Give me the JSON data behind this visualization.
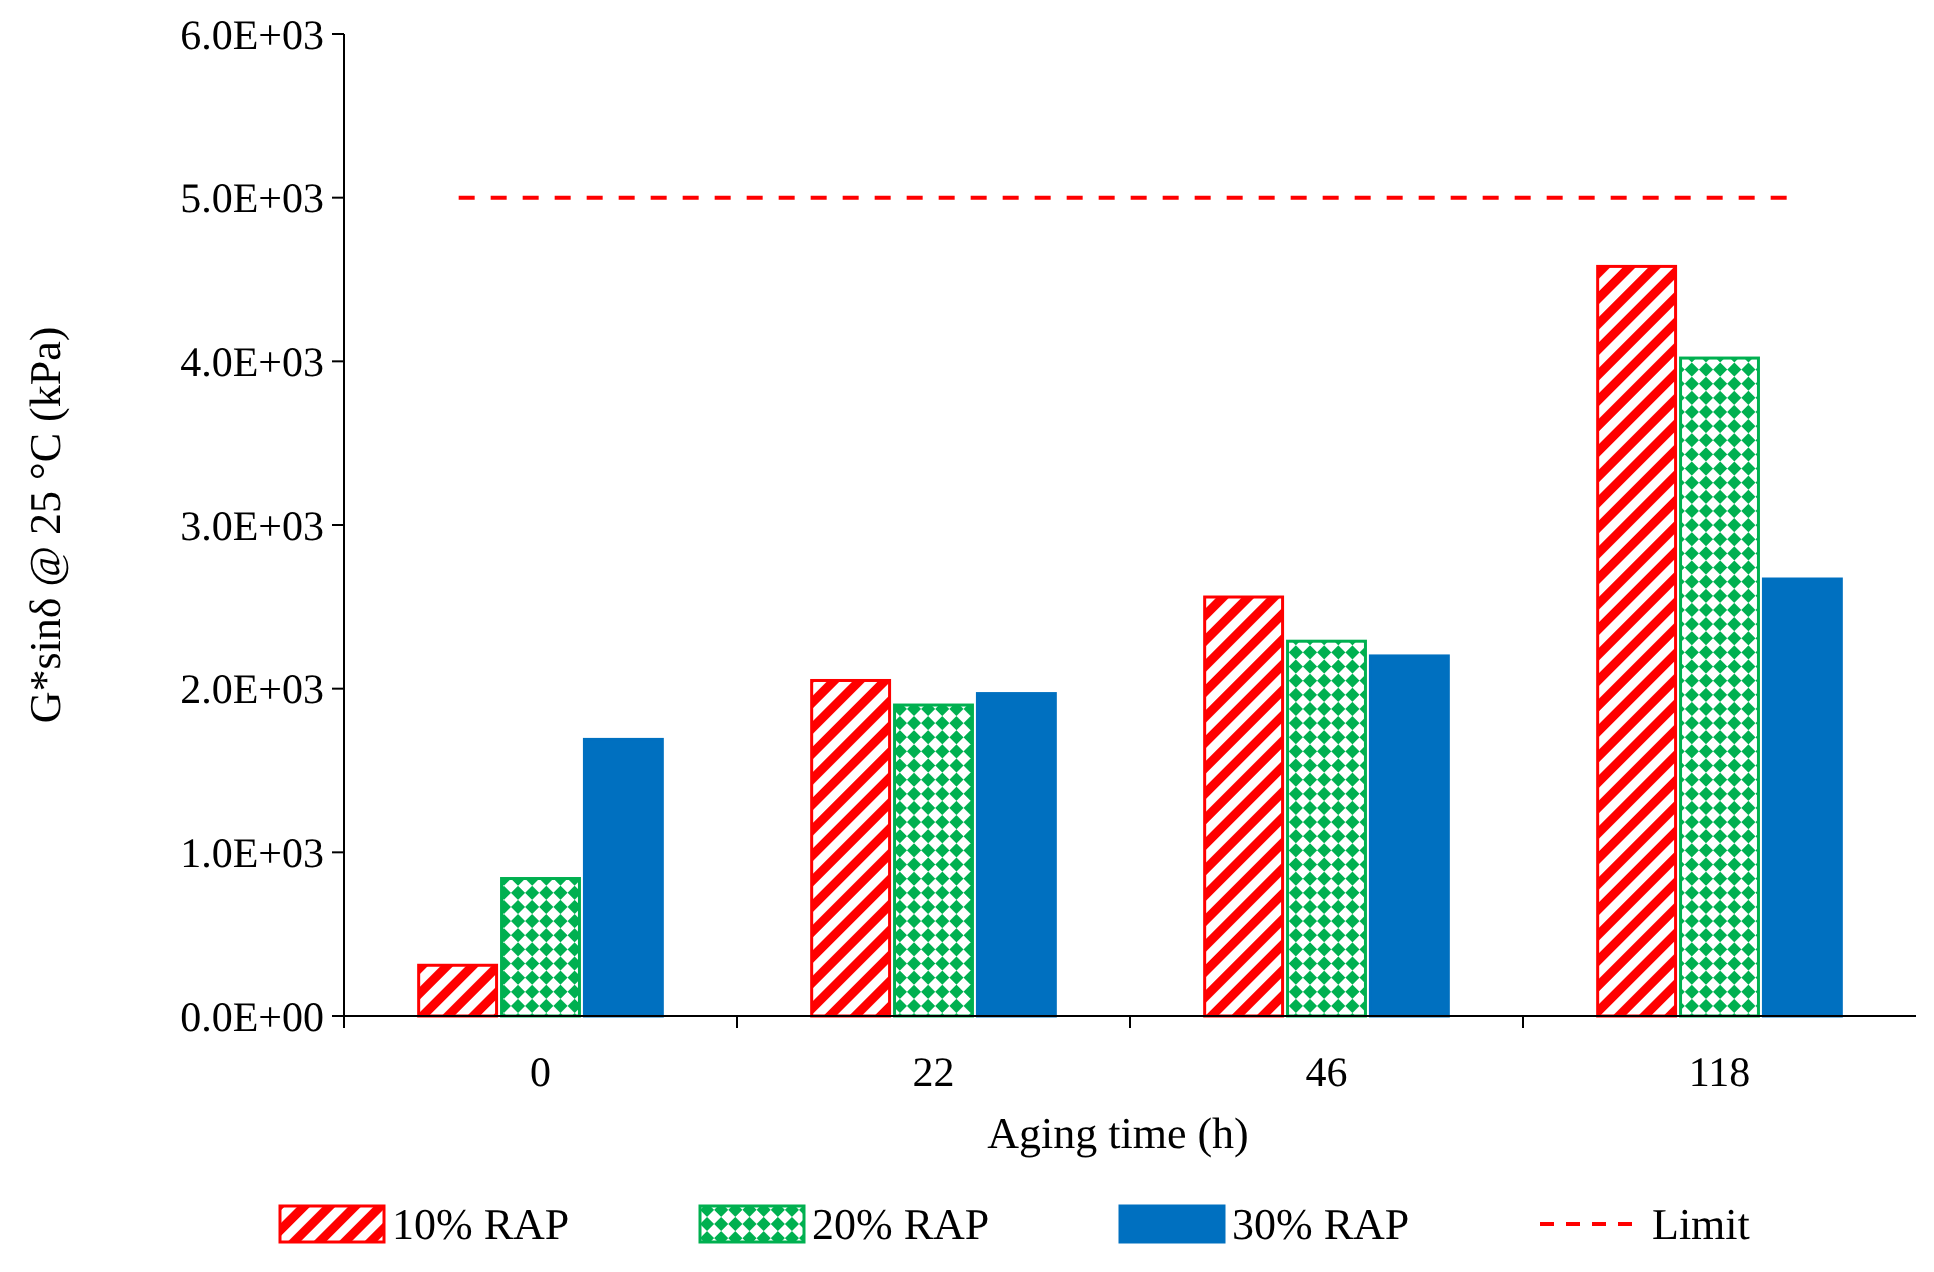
{
  "chart_data": {
    "type": "bar",
    "xlabel": "Aging time (h)",
    "ylabel": "G*sinδ @ 25 °C (kPa)",
    "categories": [
      "0",
      "22",
      "46",
      "118"
    ],
    "series": [
      {
        "name": "10% RAP",
        "color": "#ff0000",
        "values": [
          310,
          2050,
          2560,
          4580
        ]
      },
      {
        "name": "20% RAP",
        "color": "#00b050",
        "values": [
          840,
          1900,
          2290,
          4020
        ]
      },
      {
        "name": "30% RAP",
        "color": "#0070c0",
        "values": [
          1690,
          1970,
          2200,
          2670
        ]
      }
    ],
    "ylim": [
      0,
      6000
    ],
    "yticks": [
      {
        "value": 0,
        "label": "0.0E+00"
      },
      {
        "value": 1000,
        "label": "1.0E+03"
      },
      {
        "value": 2000,
        "label": "2.0E+03"
      },
      {
        "value": 3000,
        "label": "3.0E+03"
      },
      {
        "value": 4000,
        "label": "4.0E+03"
      },
      {
        "value": 5000,
        "label": "5.0E+03"
      },
      {
        "value": 6000,
        "label": "6.0E+03"
      }
    ],
    "ref_lines": [
      {
        "axis": "y",
        "value": 5000,
        "label": "Limit",
        "color": "#ff0000",
        "line_style": "dashed"
      }
    ],
    "grid": false,
    "legend": "bottom"
  }
}
